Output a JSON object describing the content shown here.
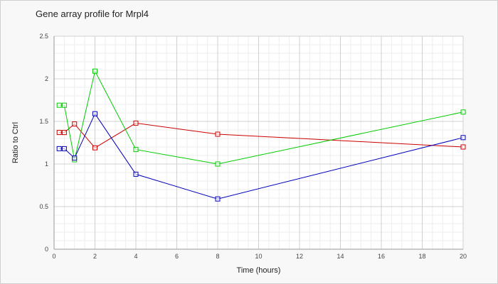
{
  "chart_data": {
    "type": "line",
    "title": "Gene array profile for Mrpl4",
    "xlabel": "Time (hours)",
    "ylabel": "Ratio to Ctrl",
    "xlim": [
      0,
      20
    ],
    "ylim": [
      0,
      2.5
    ],
    "x_ticks": [
      0,
      2,
      4,
      6,
      8,
      10,
      12,
      14,
      16,
      18,
      20
    ],
    "y_ticks": [
      0,
      0.5,
      1,
      1.5,
      2,
      2.5
    ],
    "x_tick_labels": [
      "0",
      "2",
      "4",
      "6",
      "8",
      "10",
      "12",
      "14",
      "16",
      "18",
      "20"
    ],
    "y_tick_labels": [
      "0",
      "0.5",
      "1",
      "1.5",
      "2",
      "2.5"
    ],
    "grid": true,
    "series": [
      {
        "color": "#cc0000",
        "x": [
          0.25,
          0.5,
          1,
          2,
          4,
          8,
          20
        ],
        "y": [
          1.37,
          1.37,
          1.47,
          1.19,
          1.48,
          1.35,
          1.2
        ]
      },
      {
        "color": "#00cc00",
        "x": [
          0.25,
          0.5,
          1,
          2,
          4,
          8,
          20
        ],
        "y": [
          1.69,
          1.69,
          1.05,
          2.09,
          1.17,
          1.0,
          1.61
        ]
      },
      {
        "color": "#0000bb",
        "x": [
          0.25,
          0.5,
          1,
          2,
          4,
          8,
          20
        ],
        "y": [
          1.18,
          1.18,
          1.07,
          1.59,
          0.88,
          0.59,
          1.31
        ]
      }
    ]
  }
}
